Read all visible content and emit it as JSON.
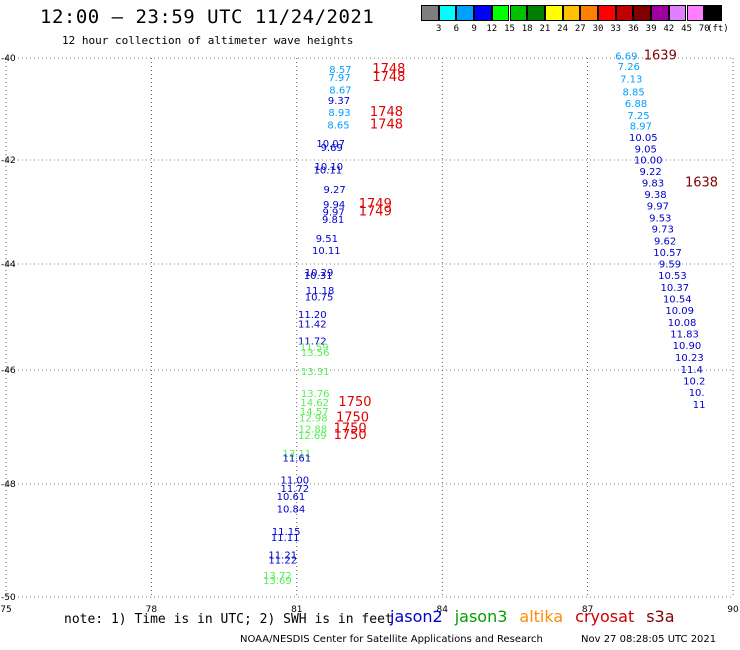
{
  "header": {
    "title": "12:00 – 23:59 UTC 11/24/2021",
    "subtitle": "12 hour collection of altimeter wave heights"
  },
  "colorbar": {
    "unit_label": "(ft)",
    "bins": [
      {
        "label": "3",
        "color": "#7f7f7f"
      },
      {
        "label": "6",
        "color": "#00ffff"
      },
      {
        "label": "9",
        "color": "#00a0ff"
      },
      {
        "label": "12",
        "color": "#0000ff"
      },
      {
        "label": "15",
        "color": "#00ff00"
      },
      {
        "label": "18",
        "color": "#00c000"
      },
      {
        "label": "21",
        "color": "#008000"
      },
      {
        "label": "24",
        "color": "#ffff00"
      },
      {
        "label": "27",
        "color": "#ffc000"
      },
      {
        "label": "30",
        "color": "#ff8000"
      },
      {
        "label": "33",
        "color": "#ff0000"
      },
      {
        "label": "36",
        "color": "#c00000"
      },
      {
        "label": "39",
        "color": "#800000"
      },
      {
        "label": "42",
        "color": "#a000a0"
      },
      {
        "label": "45",
        "color": "#e080ff"
      },
      {
        "label": "70",
        "color": "#ff80ff"
      },
      {
        "label": "",
        "color": "#000000"
      }
    ]
  },
  "note": "note: 1) Time is in UTC; 2) SWH is in feet",
  "satellites": [
    {
      "name": "jason2",
      "color": "#0000cc"
    },
    {
      "name": "jason3",
      "color": "#00a000"
    },
    {
      "name": "altika",
      "color": "#ff8c00"
    },
    {
      "name": "cryosat",
      "color": "#cc0000"
    },
    {
      "name": "s3a",
      "color": "#800000"
    }
  ],
  "credit": "NOAA/NESDIS Center for Satellite Applications and Research",
  "timestamp": "Nov 27 08:28:05 UTC 2021",
  "chart_data": {
    "type": "scatter",
    "x_ticks": [
      "75",
      "78",
      "81",
      "84",
      "87",
      "90"
    ],
    "y_ticks": [
      "-40",
      "-42",
      "-44",
      "-46",
      "-48",
      "-50"
    ],
    "xlim": [
      75,
      90
    ],
    "ylim": [
      -50,
      -40
    ],
    "grid": true,
    "value_labels": [
      {
        "x": 81.9,
        "y": -40.28,
        "text": "8.57",
        "color": "#00a0ff"
      },
      {
        "x": 81.88,
        "y": -40.43,
        "text": "7.97",
        "color": "#00a0ff"
      },
      {
        "x": 81.9,
        "y": -40.66,
        "text": "8.67",
        "color": "#00a0ff"
      },
      {
        "x": 81.87,
        "y": -40.85,
        "text": "9.37",
        "color": "#0000cc"
      },
      {
        "x": 81.88,
        "y": -41.08,
        "text": "8.93",
        "color": "#00a0ff"
      },
      {
        "x": 81.86,
        "y": -41.31,
        "text": "8.65",
        "color": "#00a0ff"
      },
      {
        "x": 81.7,
        "y": -41.65,
        "text": "10.07",
        "color": "#0000cc"
      },
      {
        "x": 81.72,
        "y": -41.73,
        "text": "9.69",
        "color": "#0000cc"
      },
      {
        "x": 81.66,
        "y": -42.08,
        "text": "10.10",
        "color": "#0000cc"
      },
      {
        "x": 81.64,
        "y": -42.14,
        "text": "10.11",
        "color": "#0000cc"
      },
      {
        "x": 81.78,
        "y": -42.5,
        "text": "9.27",
        "color": "#0000cc"
      },
      {
        "x": 81.77,
        "y": -42.78,
        "text": "9.94",
        "color": "#0000cc"
      },
      {
        "x": 81.76,
        "y": -42.92,
        "text": "9.97",
        "color": "#0000cc"
      },
      {
        "x": 81.75,
        "y": -43.06,
        "text": "9.81",
        "color": "#0000cc"
      },
      {
        "x": 81.62,
        "y": -43.41,
        "text": "9.51",
        "color": "#0000cc"
      },
      {
        "x": 81.61,
        "y": -43.64,
        "text": "10.11",
        "color": "#0000cc"
      },
      {
        "x": 81.46,
        "y": -44.04,
        "text": "10.29",
        "color": "#0000cc"
      },
      {
        "x": 81.44,
        "y": -44.1,
        "text": "10.31",
        "color": "#0000cc"
      },
      {
        "x": 81.48,
        "y": -44.38,
        "text": "11.18",
        "color": "#0000cc"
      },
      {
        "x": 81.46,
        "y": -44.5,
        "text": "10.75",
        "color": "#0000cc"
      },
      {
        "x": 81.32,
        "y": -44.82,
        "text": "11.20",
        "color": "#0000cc"
      },
      {
        "x": 81.32,
        "y": -45.0,
        "text": "11.42",
        "color": "#0000cc"
      },
      {
        "x": 81.32,
        "y": -45.32,
        "text": "11.72",
        "color": "#0000cc"
      },
      {
        "x": 81.36,
        "y": -45.43,
        "text": "11.59",
        "color": "#55ee55"
      },
      {
        "x": 81.38,
        "y": -45.53,
        "text": "13.56",
        "color": "#55ee55"
      },
      {
        "x": 81.38,
        "y": -45.88,
        "text": "13.31",
        "color": "#55ee55"
      },
      {
        "x": 81.38,
        "y": -46.29,
        "text": "13.76",
        "color": "#55ee55"
      },
      {
        "x": 81.37,
        "y": -46.46,
        "text": "14.62",
        "color": "#55ee55"
      },
      {
        "x": 81.36,
        "y": -46.62,
        "text": "14.57",
        "color": "#55ee55"
      },
      {
        "x": 81.34,
        "y": -46.74,
        "text": "12.98",
        "color": "#55ee55"
      },
      {
        "x": 81.33,
        "y": -46.95,
        "text": "12.88",
        "color": "#55ee55"
      },
      {
        "x": 81.32,
        "y": -47.07,
        "text": "12.69",
        "color": "#55ee55"
      },
      {
        "x": 81.0,
        "y": -47.4,
        "text": "13.11",
        "color": "#55ee55"
      },
      {
        "x": 81.0,
        "y": -47.49,
        "text": "11.61",
        "color": "#0000cc"
      },
      {
        "x": 80.96,
        "y": -47.89,
        "text": "11.00",
        "color": "#0000cc"
      },
      {
        "x": 80.96,
        "y": -48.05,
        "text": "11.72",
        "color": "#0000cc"
      },
      {
        "x": 80.88,
        "y": -48.2,
        "text": "10.61",
        "color": "#0000cc"
      },
      {
        "x": 80.88,
        "y": -48.43,
        "text": "10.84",
        "color": "#0000cc"
      },
      {
        "x": 80.78,
        "y": -48.85,
        "text": "11.15",
        "color": "#0000cc"
      },
      {
        "x": 80.76,
        "y": -48.96,
        "text": "11.11",
        "color": "#0000cc"
      },
      {
        "x": 80.71,
        "y": -49.29,
        "text": "11.21",
        "color": "#0000cc"
      },
      {
        "x": 80.71,
        "y": -49.38,
        "text": "11.22",
        "color": "#0000cc"
      },
      {
        "x": 80.6,
        "y": -49.67,
        "text": "13.72",
        "color": "#55ee55"
      },
      {
        "x": 80.6,
        "y": -49.76,
        "text": "13.69",
        "color": "#55ee55"
      },
      {
        "x": 87.8,
        "y": -40.03,
        "text": "6.69",
        "color": "#00a0ff"
      },
      {
        "x": 87.85,
        "y": -40.22,
        "text": "7.26",
        "color": "#00a0ff"
      },
      {
        "x": 87.9,
        "y": -40.45,
        "text": "7.13",
        "color": "#00a0ff"
      },
      {
        "x": 87.95,
        "y": -40.7,
        "text": "8.85",
        "color": "#00a0ff"
      },
      {
        "x": 88.0,
        "y": -40.91,
        "text": "6.88",
        "color": "#00a0ff"
      },
      {
        "x": 88.05,
        "y": -41.13,
        "text": "7.25",
        "color": "#00a0ff"
      },
      {
        "x": 88.1,
        "y": -41.33,
        "text": "8.97",
        "color": "#00a0ff"
      },
      {
        "x": 88.15,
        "y": -41.54,
        "text": "10.05",
        "color": "#0000cc"
      },
      {
        "x": 88.2,
        "y": -41.75,
        "text": "9.05",
        "color": "#0000cc"
      },
      {
        "x": 88.25,
        "y": -41.96,
        "text": "10.00",
        "color": "#0000cc"
      },
      {
        "x": 88.3,
        "y": -42.17,
        "text": "9.22",
        "color": "#0000cc"
      },
      {
        "x": 88.35,
        "y": -42.38,
        "text": "9.83",
        "color": "#0000cc"
      },
      {
        "x": 88.4,
        "y": -42.6,
        "text": "9.38",
        "color": "#0000cc"
      },
      {
        "x": 88.45,
        "y": -42.81,
        "text": "9.97",
        "color": "#0000cc"
      },
      {
        "x": 88.5,
        "y": -43.03,
        "text": "9.53",
        "color": "#0000cc"
      },
      {
        "x": 88.55,
        "y": -43.24,
        "text": "9.73",
        "color": "#0000cc"
      },
      {
        "x": 88.6,
        "y": -43.46,
        "text": "9.62",
        "color": "#0000cc"
      },
      {
        "x": 88.65,
        "y": -43.67,
        "text": "10.57",
        "color": "#0000cc"
      },
      {
        "x": 88.7,
        "y": -43.89,
        "text": "9.59",
        "color": "#0000cc"
      },
      {
        "x": 88.75,
        "y": -44.1,
        "text": "10.53",
        "color": "#0000cc"
      },
      {
        "x": 88.8,
        "y": -44.32,
        "text": "10.37",
        "color": "#0000cc"
      },
      {
        "x": 88.85,
        "y": -44.54,
        "text": "10.54",
        "color": "#0000cc"
      },
      {
        "x": 88.9,
        "y": -44.75,
        "text": "10.09",
        "color": "#0000cc"
      },
      {
        "x": 88.95,
        "y": -44.97,
        "text": "10.08",
        "color": "#0000cc"
      },
      {
        "x": 89.0,
        "y": -45.19,
        "text": "11.83",
        "color": "#0000cc"
      },
      {
        "x": 89.05,
        "y": -45.4,
        "text": "10.90",
        "color": "#0000cc"
      },
      {
        "x": 89.1,
        "y": -45.62,
        "text": "10.23",
        "color": "#0000cc"
      },
      {
        "x": 89.15,
        "y": -45.84,
        "text": "11.4",
        "color": "#0000cc"
      },
      {
        "x": 89.2,
        "y": -46.06,
        "text": "10.2",
        "color": "#0000cc"
      },
      {
        "x": 89.25,
        "y": -46.27,
        "text": "10.",
        "color": "#0000cc"
      },
      {
        "x": 89.3,
        "y": -46.49,
        "text": "11",
        "color": "#0000cc"
      }
    ],
    "pass_labels": [
      {
        "x": 82.9,
        "y": -40.28,
        "text": "1748",
        "color": "#e00000"
      },
      {
        "x": 82.9,
        "y": -40.43,
        "text": "1748",
        "color": "#e00000"
      },
      {
        "x": 82.85,
        "y": -41.08,
        "text": "1748",
        "color": "#e00000"
      },
      {
        "x": 82.85,
        "y": -41.31,
        "text": "1748",
        "color": "#e00000"
      },
      {
        "x": 82.62,
        "y": -42.78,
        "text": "1749",
        "color": "#e00000"
      },
      {
        "x": 82.62,
        "y": -42.92,
        "text": "1749",
        "color": "#e00000"
      },
      {
        "x": 82.2,
        "y": -46.46,
        "text": "1750",
        "color": "#e00000"
      },
      {
        "x": 82.15,
        "y": -46.74,
        "text": "1750",
        "color": "#e00000"
      },
      {
        "x": 82.1,
        "y": -46.95,
        "text": "1750",
        "color": "#e00000"
      },
      {
        "x": 82.1,
        "y": -47.07,
        "text": "1750",
        "color": "#e00000"
      },
      {
        "x": 88.5,
        "y": -40.03,
        "text": "1639",
        "color": "#800000"
      },
      {
        "x": 89.35,
        "y": -42.38,
        "text": "1638",
        "color": "#800000"
      }
    ]
  }
}
